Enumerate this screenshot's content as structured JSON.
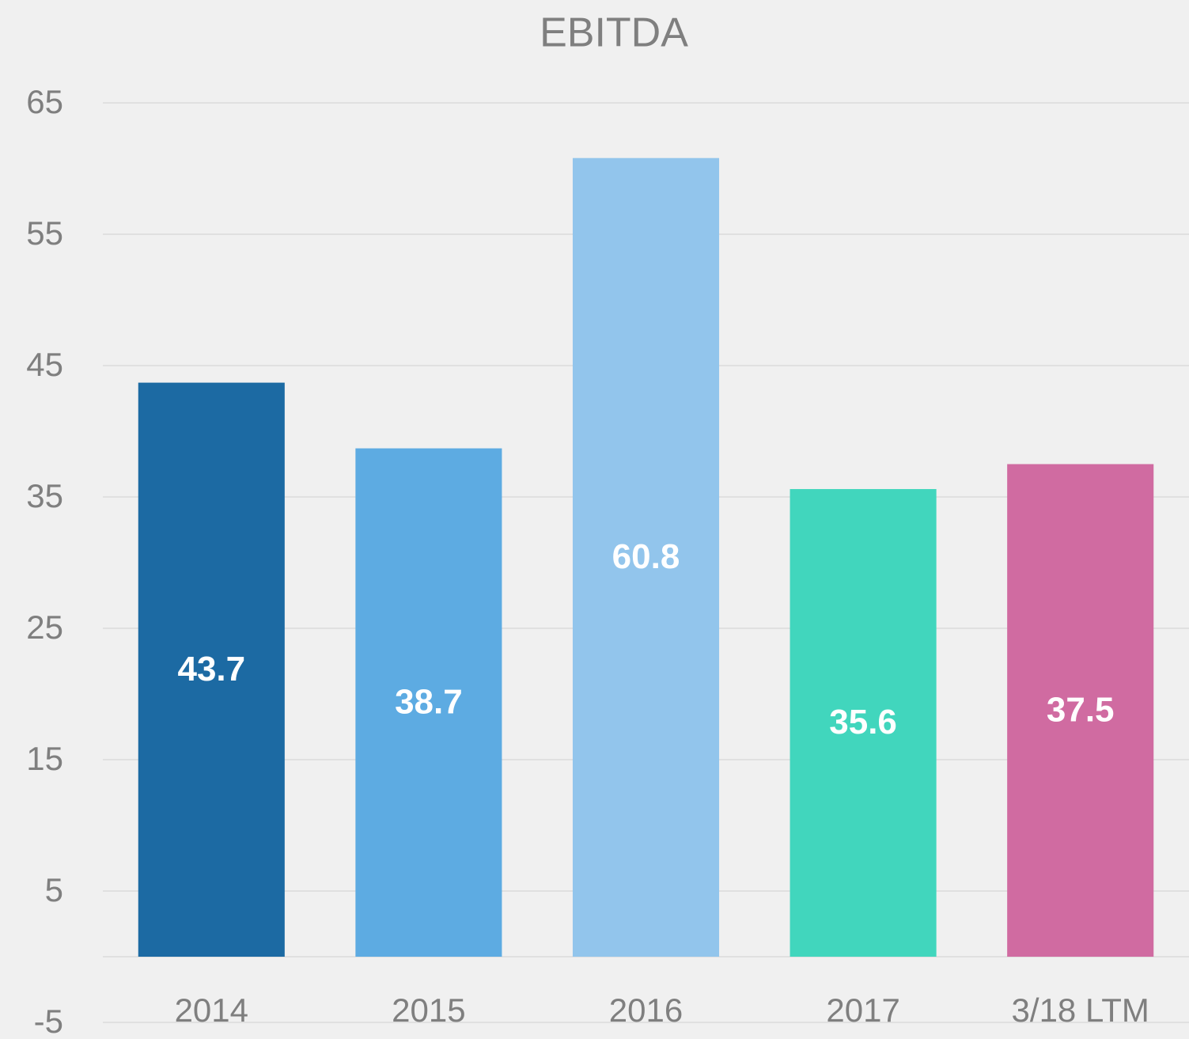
{
  "chart_data": {
    "type": "bar",
    "title": "EBITDA",
    "categories": [
      "2014",
      "2015",
      "2016",
      "2017",
      "3/18 LTM"
    ],
    "values": [
      43.7,
      38.7,
      60.8,
      35.6,
      37.5
    ],
    "colors": [
      "#1c6aa3",
      "#5dabe2",
      "#92c5ec",
      "#41d6bd",
      "#d06ba1"
    ],
    "ylim": [
      -5,
      65
    ],
    "yticks": [
      65,
      55,
      45,
      35,
      25,
      15,
      5,
      -5
    ],
    "grid": true
  }
}
